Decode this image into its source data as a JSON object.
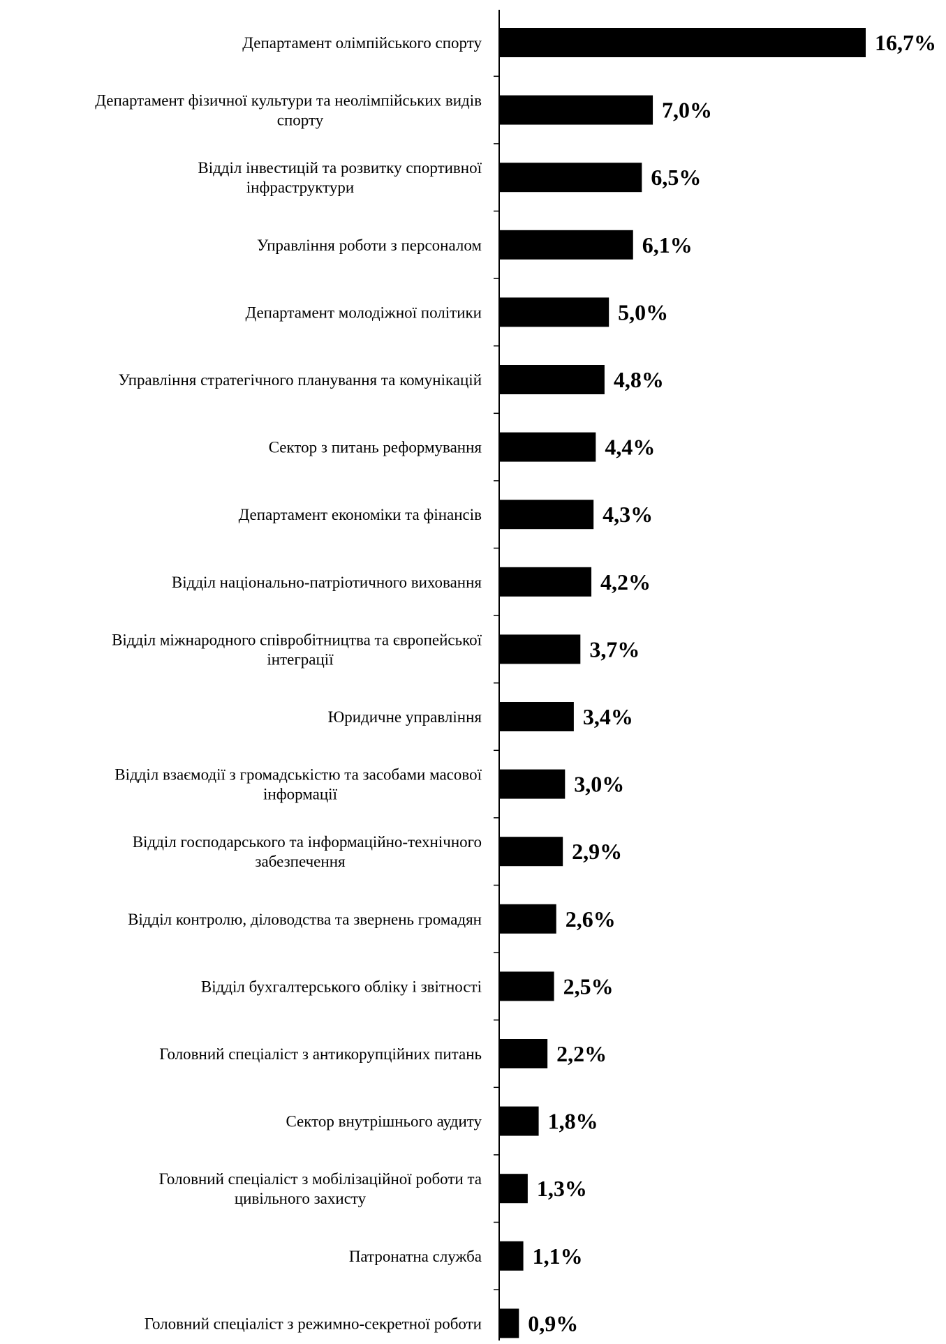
{
  "chart_data": {
    "type": "bar",
    "orientation": "horizontal",
    "categories": [
      [
        "Департамент олімпійського спорту"
      ],
      [
        "Департамент фізичної культури та неолімпійських видів",
        "спорту"
      ],
      [
        "Відділ інвестицій та розвитку спортивної",
        "інфраструктури"
      ],
      [
        "Управління роботи з персоналом"
      ],
      [
        "Департамент молодіжної політики"
      ],
      [
        "Управління стратегічного планування та комунікацій"
      ],
      [
        "Сектор з питань реформування"
      ],
      [
        "Департамент економіки та фінансів"
      ],
      [
        "Відділ національно-патріотичного виховання"
      ],
      [
        "Відділ міжнародного співробітництва та європейської",
        "інтеграції"
      ],
      [
        "Юридичне управління"
      ],
      [
        "Відділ взаємодії з громадськістю та засобами масової",
        "інформації"
      ],
      [
        "Відділ господарського та інформаційно-технічного",
        "забезпечення"
      ],
      [
        "Відділ контролю, діловодства та звернень громадян"
      ],
      [
        "Відділ бухгалтерського обліку і звітності"
      ],
      [
        "Головний спеціаліст з антикорупційних питань"
      ],
      [
        "Сектор внутрішнього аудиту"
      ],
      [
        "Головний спеціаліст з мобілізаційної роботи та",
        "цивільного захисту"
      ],
      [
        "Патронатна служба"
      ],
      [
        "Головний спеціаліст з режимно-секретної роботи"
      ]
    ],
    "values": [
      16.7,
      7.0,
      6.5,
      6.1,
      5.0,
      4.8,
      4.4,
      4.3,
      4.2,
      3.7,
      3.4,
      3.0,
      2.9,
      2.6,
      2.5,
      2.2,
      1.8,
      1.3,
      1.1,
      0.9
    ],
    "value_labels": [
      "16,7%",
      "7,0%",
      "6,5%",
      "6,1%",
      "5,0%",
      "4,8%",
      "4,4%",
      "4,3%",
      "4,2%",
      "3,7%",
      "3,4%",
      "3,0%",
      "2,9%",
      "2,6%",
      "2,5%",
      "2,2%",
      "1,8%",
      "1,3%",
      "1,1%",
      "0,9%"
    ],
    "unit": "%",
    "title": "",
    "xlabel": "",
    "ylabel": "",
    "xlim": [
      0,
      16.7
    ],
    "grid": false,
    "legend": "none",
    "bar_color": "#000000",
    "axis_color": "#000000"
  }
}
